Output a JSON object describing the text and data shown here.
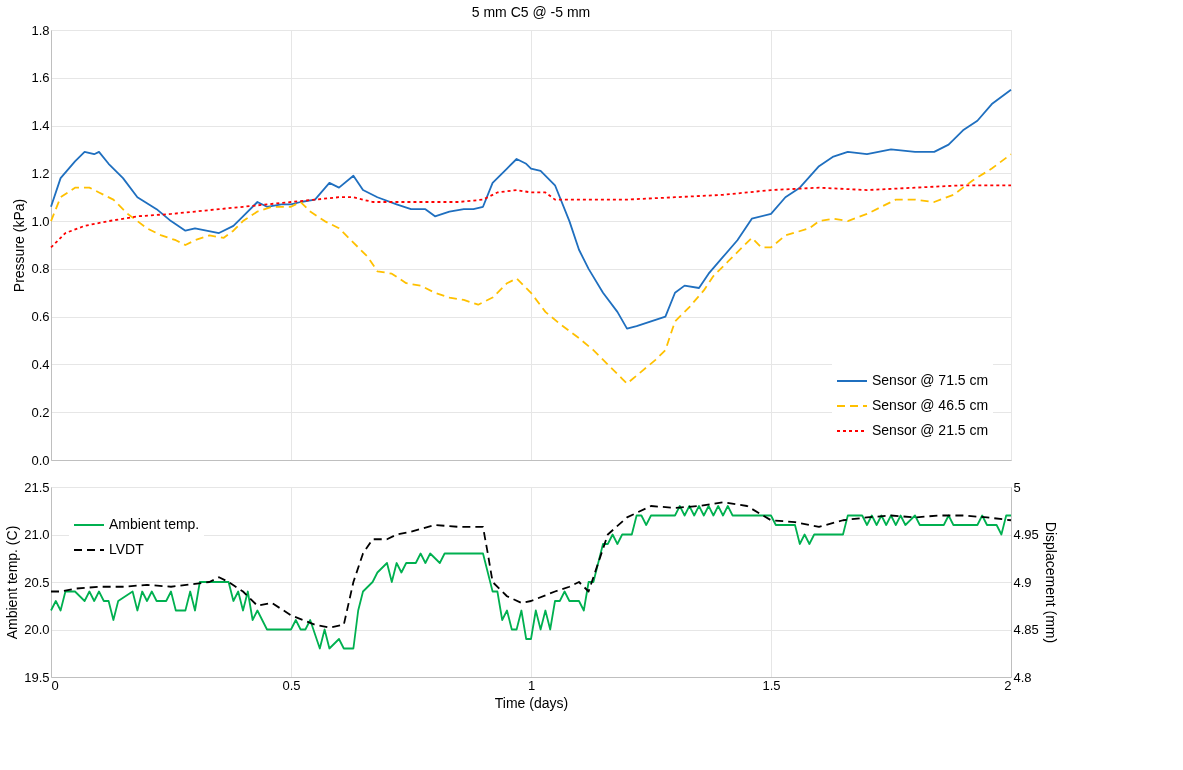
{
  "chart_data": [
    {
      "type": "line",
      "title": "5 mm C5 @ -5 mm",
      "ylabel": "Pressure (kPa)",
      "xlim": [
        0,
        2
      ],
      "xticks": [
        0,
        0.5,
        1,
        1.5,
        2
      ],
      "ylim": [
        0,
        1.8
      ],
      "yticks": [
        {
          "value": 0,
          "label": "0.0"
        },
        0.2,
        0.4,
        0.6,
        0.8,
        {
          "value": 1,
          "label": "1.0"
        },
        1.2,
        1.4,
        1.6,
        1.8
      ],
      "grid": true,
      "legend": "bottom right",
      "tick_labels": "y",
      "series": [
        {
          "name": "Sensor @ 71.5 cm",
          "color": "#1f6fbf",
          "line_style": "solid",
          "x": [
            0,
            0.02,
            0.05,
            0.07,
            0.09,
            0.1,
            0.12,
            0.15,
            0.18,
            0.22,
            0.25,
            0.28,
            0.3,
            0.35,
            0.38,
            0.4,
            0.43,
            0.45,
            0.48,
            0.5,
            0.52,
            0.55,
            0.58,
            0.6,
            0.63,
            0.65,
            0.68,
            0.72,
            0.75,
            0.78,
            0.8,
            0.83,
            0.86,
            0.88,
            0.9,
            0.92,
            0.95,
            0.97,
            0.99,
            1.0,
            1.02,
            1.05,
            1.08,
            1.1,
            1.12,
            1.15,
            1.18,
            1.2,
            1.22,
            1.25,
            1.28,
            1.3,
            1.32,
            1.35,
            1.37,
            1.4,
            1.43,
            1.46,
            1.5,
            1.53,
            1.56,
            1.6,
            1.63,
            1.66,
            1.7,
            1.75,
            1.8,
            1.84,
            1.87,
            1.9,
            1.93,
            1.96,
            2.0
          ],
          "values": [
            1.06,
            1.18,
            1.25,
            1.29,
            1.28,
            1.29,
            1.24,
            1.18,
            1.1,
            1.05,
            1.0,
            0.96,
            0.97,
            0.95,
            0.98,
            1.02,
            1.08,
            1.06,
            1.07,
            1.07,
            1.08,
            1.09,
            1.16,
            1.14,
            1.19,
            1.13,
            1.1,
            1.07,
            1.05,
            1.05,
            1.02,
            1.04,
            1.05,
            1.05,
            1.06,
            1.16,
            1.22,
            1.26,
            1.24,
            1.22,
            1.21,
            1.15,
            1.0,
            0.88,
            0.8,
            0.7,
            0.62,
            0.55,
            0.56,
            0.58,
            0.6,
            0.7,
            0.73,
            0.72,
            0.78,
            0.85,
            0.92,
            1.01,
            1.03,
            1.1,
            1.14,
            1.23,
            1.27,
            1.29,
            1.28,
            1.3,
            1.29,
            1.29,
            1.32,
            1.38,
            1.42,
            1.49,
            1.55
          ]
        },
        {
          "name": "Sensor @ 46.5 cm",
          "color": "#ffc000",
          "line_style": "dashed",
          "x": [
            0,
            0.02,
            0.05,
            0.08,
            0.1,
            0.13,
            0.16,
            0.2,
            0.23,
            0.26,
            0.28,
            0.3,
            0.33,
            0.36,
            0.38,
            0.4,
            0.43,
            0.46,
            0.5,
            0.52,
            0.54,
            0.57,
            0.6,
            0.63,
            0.66,
            0.68,
            0.71,
            0.74,
            0.77,
            0.8,
            0.83,
            0.86,
            0.89,
            0.92,
            0.95,
            0.97,
            1.0,
            1.03,
            1.06,
            1.1,
            1.13,
            1.16,
            1.19,
            1.2,
            1.23,
            1.26,
            1.28,
            1.3,
            1.33,
            1.36,
            1.38,
            1.41,
            1.46,
            1.48,
            1.5,
            1.53,
            1.58,
            1.6,
            1.63,
            1.66,
            1.7,
            1.73,
            1.76,
            1.8,
            1.84,
            1.88,
            1.92,
            1.96,
            2.0
          ],
          "values": [
            1.0,
            1.1,
            1.14,
            1.14,
            1.12,
            1.09,
            1.03,
            0.97,
            0.94,
            0.92,
            0.9,
            0.92,
            0.94,
            0.93,
            0.96,
            1.0,
            1.04,
            1.06,
            1.06,
            1.08,
            1.04,
            1.0,
            0.97,
            0.91,
            0.85,
            0.79,
            0.78,
            0.74,
            0.73,
            0.7,
            0.68,
            0.67,
            0.65,
            0.68,
            0.74,
            0.76,
            0.7,
            0.62,
            0.57,
            0.51,
            0.46,
            0.4,
            0.34,
            0.32,
            0.37,
            0.42,
            0.46,
            0.58,
            0.64,
            0.71,
            0.77,
            0.83,
            0.93,
            0.89,
            0.89,
            0.94,
            0.97,
            1.0,
            1.01,
            1.0,
            1.03,
            1.06,
            1.09,
            1.09,
            1.08,
            1.11,
            1.17,
            1.22,
            1.28
          ]
        },
        {
          "name": "Sensor @ 21.5 cm",
          "color": "#ff0000",
          "line_style": "dotted",
          "x": [
            0,
            0.03,
            0.07,
            0.12,
            0.18,
            0.25,
            0.3,
            0.35,
            0.4,
            0.45,
            0.5,
            0.55,
            0.6,
            0.63,
            0.67,
            0.75,
            0.85,
            0.9,
            0.93,
            0.97,
            1.0,
            1.03,
            1.05,
            1.15,
            1.2,
            1.3,
            1.4,
            1.5,
            1.6,
            1.7,
            1.8,
            1.9,
            2.0
          ],
          "values": [
            0.89,
            0.95,
            0.98,
            1.0,
            1.02,
            1.03,
            1.04,
            1.05,
            1.06,
            1.07,
            1.08,
            1.09,
            1.1,
            1.1,
            1.08,
            1.08,
            1.08,
            1.09,
            1.12,
            1.13,
            1.12,
            1.12,
            1.09,
            1.09,
            1.09,
            1.1,
            1.11,
            1.13,
            1.14,
            1.13,
            1.14,
            1.15,
            1.15
          ]
        }
      ]
    },
    {
      "type": "line",
      "xlabel": "Time (days)",
      "ylabel": "Ambient temp. (C)",
      "y2label": "Displacement (mm)",
      "xlim": [
        0,
        2
      ],
      "xticks": [
        0,
        0.5,
        1,
        1.5,
        2
      ],
      "ylim": [
        19.5,
        21.5
      ],
      "yticks": [
        19.5,
        {
          "value": 20,
          "label": "20.0"
        },
        20.5,
        {
          "value": 21,
          "label": "21.0"
        },
        21.5
      ],
      "y2lim": [
        4.8,
        5
      ],
      "y2ticks": [
        4.8,
        4.85,
        4.9,
        4.95,
        5
      ],
      "grid": true,
      "legend": "top left",
      "series": [
        {
          "name": "Ambient temp.",
          "color": "#00b050",
          "line_style": "solid",
          "x": [
            0,
            0.01,
            0.02,
            0.03,
            0.05,
            0.07,
            0.08,
            0.09,
            0.1,
            0.11,
            0.12,
            0.13,
            0.14,
            0.17,
            0.18,
            0.19,
            0.2,
            0.21,
            0.22,
            0.24,
            0.25,
            0.26,
            0.28,
            0.29,
            0.3,
            0.31,
            0.36,
            0.37,
            0.38,
            0.39,
            0.4,
            0.41,
            0.42,
            0.43,
            0.45,
            0.5,
            0.51,
            0.52,
            0.53,
            0.54,
            0.56,
            0.57,
            0.58,
            0.6,
            0.61,
            0.63,
            0.64,
            0.65,
            0.67,
            0.68,
            0.7,
            0.71,
            0.72,
            0.73,
            0.74,
            0.76,
            0.77,
            0.78,
            0.79,
            0.81,
            0.82,
            0.9,
            0.92,
            0.93,
            0.94,
            0.95,
            0.96,
            0.97,
            0.98,
            0.99,
            1.0,
            1.01,
            1.02,
            1.03,
            1.04,
            1.05,
            1.06,
            1.07,
            1.08,
            1.1,
            1.11,
            1.12,
            1.13,
            1.15,
            1.16,
            1.17,
            1.18,
            1.19,
            1.21,
            1.22,
            1.23,
            1.24,
            1.25,
            1.3,
            1.31,
            1.32,
            1.33,
            1.34,
            1.35,
            1.36,
            1.37,
            1.38,
            1.39,
            1.4,
            1.41,
            1.42,
            1.5,
            1.51,
            1.55,
            1.56,
            1.57,
            1.58,
            1.59,
            1.65,
            1.66,
            1.69,
            1.7,
            1.71,
            1.72,
            1.73,
            1.74,
            1.75,
            1.76,
            1.77,
            1.78,
            1.8,
            1.81,
            1.86,
            1.87,
            1.88,
            1.93,
            1.94,
            1.95,
            1.97,
            1.98,
            1.99,
            2.0
          ],
          "values": [
            20.2,
            20.3,
            20.2,
            20.4,
            20.4,
            20.3,
            20.4,
            20.3,
            20.4,
            20.3,
            20.3,
            20.1,
            20.3,
            20.4,
            20.2,
            20.4,
            20.3,
            20.4,
            20.3,
            20.3,
            20.4,
            20.2,
            20.2,
            20.4,
            20.2,
            20.5,
            20.5,
            20.5,
            20.3,
            20.4,
            20.2,
            20.4,
            20.1,
            20.2,
            20.0,
            20.0,
            20.1,
            20.0,
            20.0,
            20.1,
            19.8,
            20.0,
            19.8,
            19.9,
            19.8,
            19.8,
            20.2,
            20.4,
            20.5,
            20.6,
            20.7,
            20.5,
            20.7,
            20.6,
            20.7,
            20.7,
            20.8,
            20.7,
            20.8,
            20.7,
            20.8,
            20.8,
            20.4,
            20.4,
            20.1,
            20.2,
            20.0,
            20.0,
            20.2,
            19.9,
            19.9,
            20.2,
            20.0,
            20.2,
            20.0,
            20.3,
            20.3,
            20.4,
            20.3,
            20.3,
            20.2,
            20.5,
            20.5,
            20.9,
            20.9,
            21.0,
            20.9,
            21.0,
            21.0,
            21.2,
            21.2,
            21.1,
            21.2,
            21.2,
            21.3,
            21.2,
            21.3,
            21.2,
            21.3,
            21.2,
            21.3,
            21.2,
            21.3,
            21.2,
            21.3,
            21.2,
            21.2,
            21.1,
            21.1,
            20.9,
            21.0,
            20.9,
            21.0,
            21.0,
            21.2,
            21.2,
            21.1,
            21.2,
            21.1,
            21.2,
            21.1,
            21.2,
            21.1,
            21.2,
            21.1,
            21.2,
            21.1,
            21.1,
            21.2,
            21.1,
            21.1,
            21.2,
            21.1,
            21.1,
            21.0,
            21.2,
            21.2
          ]
        },
        {
          "name": "LVDT",
          "color": "#000000",
          "line_style": "dashed",
          "axis": "y2",
          "x": [
            0,
            0.02,
            0.05,
            0.1,
            0.15,
            0.2,
            0.25,
            0.3,
            0.33,
            0.35,
            0.37,
            0.4,
            0.43,
            0.46,
            0.5,
            0.55,
            0.58,
            0.61,
            0.63,
            0.65,
            0.67,
            0.7,
            0.72,
            0.75,
            0.8,
            0.85,
            0.9,
            0.91,
            0.92,
            0.95,
            0.98,
            1.0,
            1.05,
            1.08,
            1.1,
            1.12,
            1.14,
            1.16,
            1.2,
            1.25,
            1.3,
            1.35,
            1.4,
            1.45,
            1.5,
            1.55,
            1.6,
            1.65,
            1.7,
            1.75,
            1.8,
            1.85,
            1.9,
            1.95,
            2.0
          ],
          "values": [
            4.89,
            4.89,
            4.893,
            4.895,
            4.895,
            4.897,
            4.895,
            4.898,
            4.9,
            4.905,
            4.9,
            4.89,
            4.875,
            4.878,
            4.865,
            4.855,
            4.852,
            4.855,
            4.9,
            4.93,
            4.945,
            4.945,
            4.95,
            4.953,
            4.96,
            4.958,
            4.958,
            4.93,
            4.9,
            4.885,
            4.878,
            4.88,
            4.89,
            4.895,
            4.9,
            4.89,
            4.92,
            4.95,
            4.968,
            4.98,
            4.978,
            4.98,
            4.984,
            4.98,
            4.965,
            4.963,
            4.958,
            4.965,
            4.968,
            4.97,
            4.968,
            4.97,
            4.97,
            4.968,
            4.965
          ]
        }
      ]
    }
  ]
}
